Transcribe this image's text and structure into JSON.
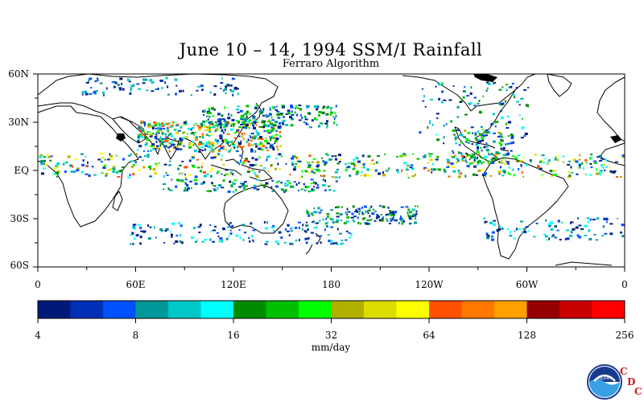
{
  "title": "June 10 – 14, 1994 SSM/I Rainfall",
  "subtitle": "Ferraro Algorithm",
  "lat_labels": [
    "60N",
    "30N",
    "EQ",
    "30S",
    "60S"
  ],
  "lon_labels": [
    "0",
    "60E",
    "120E",
    "180",
    "120W",
    "60W",
    "0"
  ],
  "colorbar": {
    "tick_labels": [
      "4",
      "8",
      "16",
      "32",
      "64",
      "128",
      "256"
    ],
    "units": "mm/day",
    "colors": [
      "#001a7a",
      "#0030b8",
      "#0050ff",
      "#009898",
      "#00c8c8",
      "#00ffff",
      "#008c00",
      "#00bf00",
      "#00ff00",
      "#b0b000",
      "#dcdc00",
      "#ffff00",
      "#ff5000",
      "#ff7800",
      "#ffa000",
      "#960000",
      "#c80000",
      "#ff0000"
    ]
  },
  "logo": {
    "emblem_text": "NOAA",
    "letters": [
      "C",
      "D",
      "C"
    ]
  }
}
